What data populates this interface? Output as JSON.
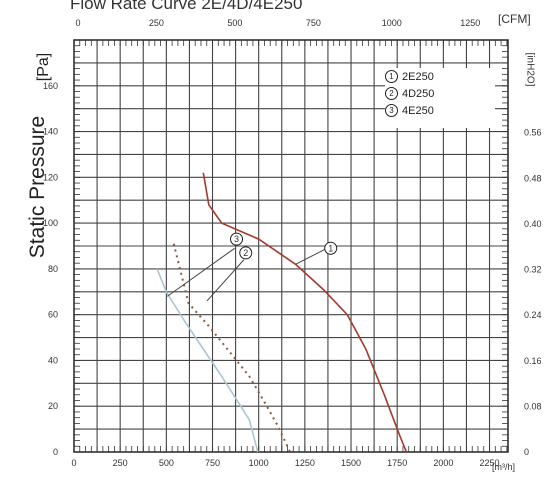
{
  "chart_data": {
    "type": "line",
    "title": "Flow Rate Curve  2E/4D/4E250",
    "ylabel": "Static Pressure",
    "y_unit": "[Pa]",
    "y2_unit": "[inH2O]",
    "x_unit_top": "[CFM]",
    "x_unit_bottom": "[m³/h]",
    "xlim": [
      0,
      2350
    ],
    "ylim": [
      0,
      180
    ],
    "x_ticks": [
      "0",
      "250",
      "500",
      "750",
      "1000",
      "1250",
      "1500",
      "1750",
      "2000",
      "2250"
    ],
    "x_ticks_top": [
      "0",
      "250",
      "500",
      "750",
      "1000",
      "1250"
    ],
    "y_ticks": [
      "0",
      "20",
      "40",
      "60",
      "80",
      "100",
      "120",
      "140",
      "160"
    ],
    "y2_ticks": [
      "0",
      "0.08",
      "0.16",
      "0.24",
      "0.32",
      "0.40",
      "0.48",
      "0.56"
    ],
    "grid": true,
    "legend_position": "top-right",
    "series": [
      {
        "name": "2E250",
        "marker_number": "1",
        "color": "#a33a2e",
        "style": "solid",
        "points": [
          [
            700,
            122
          ],
          [
            730,
            108
          ],
          [
            800,
            100
          ],
          [
            1000,
            93
          ],
          [
            1200,
            82
          ],
          [
            1350,
            71
          ],
          [
            1480,
            60
          ],
          [
            1580,
            45
          ],
          [
            1680,
            25
          ],
          [
            1760,
            8
          ],
          [
            1800,
            0
          ]
        ]
      },
      {
        "name": "4D250",
        "marker_number": "2",
        "color": "#8a5a48",
        "style": "dotted",
        "points": [
          [
            540,
            91
          ],
          [
            620,
            65
          ],
          [
            730,
            55
          ],
          [
            850,
            43
          ],
          [
            950,
            33
          ],
          [
            1030,
            22
          ],
          [
            1100,
            12
          ],
          [
            1170,
            0
          ]
        ]
      },
      {
        "name": "4E250",
        "marker_number": "3",
        "color": "#a9c6d3",
        "style": "solid",
        "points": [
          [
            450,
            80
          ],
          [
            500,
            70
          ],
          [
            600,
            57
          ],
          [
            700,
            45
          ],
          [
            800,
            33
          ],
          [
            880,
            23
          ],
          [
            950,
            14
          ],
          [
            995,
            0
          ]
        ]
      }
    ],
    "annotations": [
      {
        "label": "1",
        "target_series": "2E250"
      },
      {
        "label": "3",
        "target_series": "4E250"
      },
      {
        "label": "2",
        "target_series": "4D250"
      }
    ]
  },
  "legend": {
    "items": [
      {
        "num": "1",
        "label": "2E250"
      },
      {
        "num": "2",
        "label": "4D250"
      },
      {
        "num": "3",
        "label": "4E250"
      }
    ]
  }
}
